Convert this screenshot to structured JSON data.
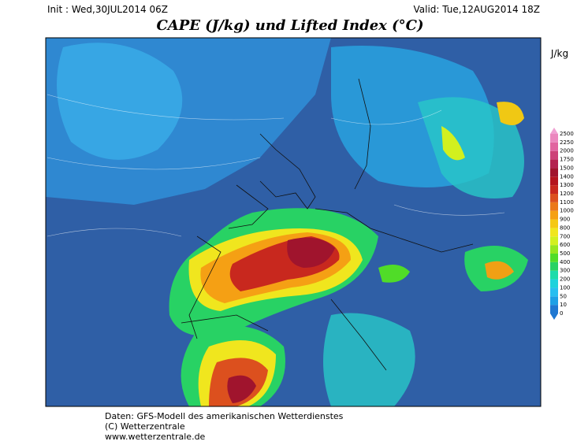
{
  "header": {
    "init": "Init : Wed,30JUL2014 06Z",
    "valid": "Valid: Tue,12AUG2014 18Z",
    "title": "CAPE (J/kg) und Lifted Index (°C)"
  },
  "legend": {
    "unit": "J/kg",
    "levels": [
      0,
      10,
      50,
      100,
      200,
      300,
      400,
      500,
      600,
      700,
      800,
      900,
      1000,
      1100,
      1200,
      1300,
      1400,
      1500,
      1750,
      2000,
      2250,
      2500
    ],
    "colors": [
      "#1f78d2",
      "#1ea0e6",
      "#28bef0",
      "#1ed2dc",
      "#1edcaa",
      "#28d264",
      "#50dc28",
      "#96e61e",
      "#d2f01e",
      "#f0e61e",
      "#f5c814",
      "#f5a014",
      "#eb7819",
      "#dc501e",
      "#c8281e",
      "#b4141e",
      "#a0142d",
      "#b42350",
      "#cd4178",
      "#e164a0",
      "#eb87be",
      "#f0a0d2"
    ]
  },
  "footer": {
    "lines": [
      "Daten: GFS-Modell des amerikanischen Wetterdienstes",
      "(C) Wetterzentrale",
      "www.wetterzentrale.de"
    ]
  }
}
